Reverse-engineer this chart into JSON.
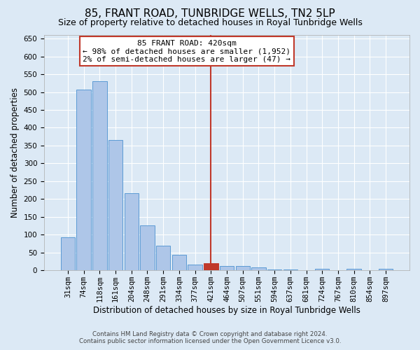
{
  "title": "85, FRANT ROAD, TUNBRIDGE WELLS, TN2 5LP",
  "subtitle": "Size of property relative to detached houses in Royal Tunbridge Wells",
  "xlabel": "Distribution of detached houses by size in Royal Tunbridge Wells",
  "ylabel": "Number of detached properties",
  "footer_line1": "Contains HM Land Registry data © Crown copyright and database right 2024.",
  "footer_line2": "Contains public sector information licensed under the Open Government Licence v3.0.",
  "annotation_title": "85 FRANT ROAD: 420sqm",
  "annotation_line2": "← 98% of detached houses are smaller (1,952)",
  "annotation_line3": "2% of semi-detached houses are larger (47) →",
  "property_index": 9,
  "categories": [
    "31sqm",
    "74sqm",
    "118sqm",
    "161sqm",
    "204sqm",
    "248sqm",
    "291sqm",
    "334sqm",
    "377sqm",
    "421sqm",
    "464sqm",
    "507sqm",
    "551sqm",
    "594sqm",
    "637sqm",
    "681sqm",
    "724sqm",
    "767sqm",
    "810sqm",
    "854sqm",
    "897sqm"
  ],
  "values": [
    93,
    507,
    530,
    365,
    217,
    127,
    70,
    43,
    17,
    20,
    12,
    12,
    8,
    2,
    2,
    0,
    5,
    0,
    5,
    0,
    5
  ],
  "bar_color_normal": "#aec6e8",
  "bar_color_highlight": "#c0392b",
  "bar_edge_color": "#5b9bd5",
  "vline_color": "#c0392b",
  "background_color": "#dce9f5",
  "grid_color": "#ffffff",
  "ylim": [
    0,
    660
  ],
  "yticks": [
    0,
    50,
    100,
    150,
    200,
    250,
    300,
    350,
    400,
    450,
    500,
    550,
    600,
    650
  ],
  "annotation_box_color": "#ffffff",
  "annotation_box_edge": "#c0392b",
  "title_fontsize": 11,
  "subtitle_fontsize": 9,
  "axis_label_fontsize": 8.5,
  "tick_fontsize": 7.5,
  "annotation_fontsize": 8,
  "fig_width": 6.0,
  "fig_height": 5.0,
  "fig_dpi": 100
}
